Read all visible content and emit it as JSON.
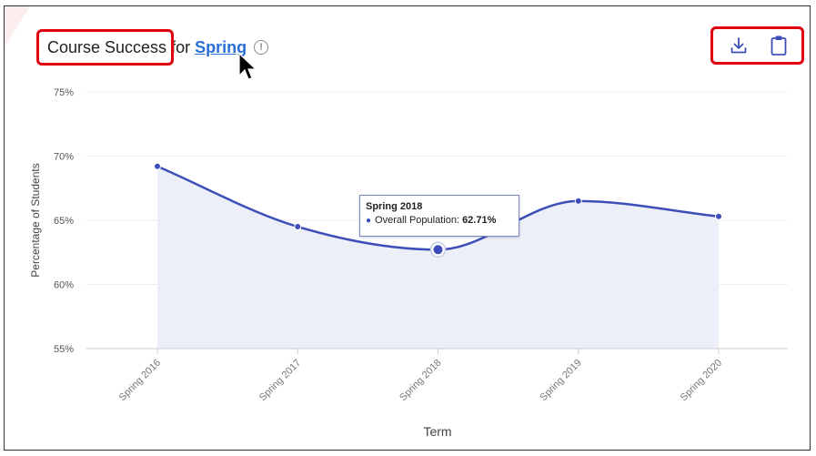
{
  "header": {
    "title": "Course Success",
    "connector": "for",
    "term_link": "Spring",
    "info_icon": "info-circle-icon"
  },
  "actions": [
    {
      "icon": "download-icon"
    },
    {
      "icon": "clipboard-icon"
    }
  ],
  "colors": {
    "series": "#3d4eb8",
    "area": "#eceef8",
    "highlight_box": "#e0000f",
    "link": "#2a6fd6"
  },
  "tooltip": {
    "title": "Spring 2018",
    "series_label": "Overall Population:",
    "value": "62.71%"
  },
  "chart_data": {
    "type": "area",
    "x": [
      "Spring 2016",
      "Spring 2017",
      "Spring 2018",
      "Spring 2019",
      "Spring 2020"
    ],
    "series": [
      {
        "name": "Overall Population",
        "values": [
          69.2,
          64.5,
          62.71,
          66.5,
          65.3
        ]
      }
    ],
    "xlabel": "Term",
    "ylabel": "Percentage of Students",
    "ylim": [
      55,
      75
    ],
    "yticks": [
      "55%",
      "60%",
      "65%",
      "70%",
      "75%"
    ],
    "grid": true,
    "highlighted_point": "Spring 2018"
  }
}
